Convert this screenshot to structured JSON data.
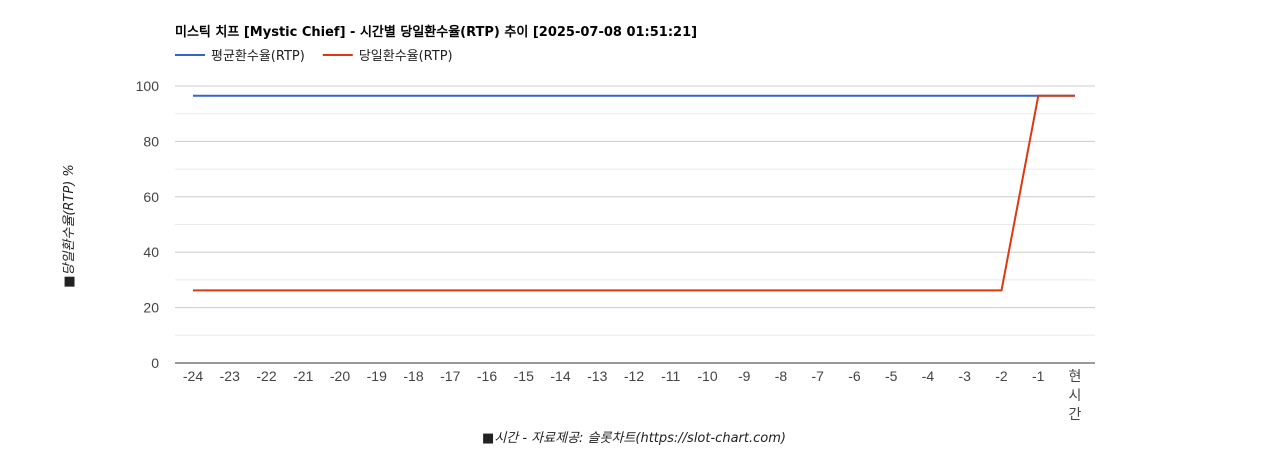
{
  "chart_data": {
    "type": "line",
    "title": "미스틱 치프 [Mystic Chief] - 시간별 당일환수율(RTP) 추이 [2025-07-08 01:51:21]",
    "xlabel": "■시간 - 자료제공: 슬롯차트(https://slot-chart.com)",
    "ylabel": "■당일환수율(RTP) %",
    "categories": [
      "-24",
      "-23",
      "-22",
      "-21",
      "-20",
      "-19",
      "-18",
      "-17",
      "-16",
      "-15",
      "-14",
      "-13",
      "-12",
      "-11",
      "-10",
      "-9",
      "-8",
      "-7",
      "-6",
      "-5",
      "-4",
      "-3",
      "-2",
      "-1",
      "현시간"
    ],
    "ylim": [
      0,
      100
    ],
    "yticks": [
      0,
      20,
      40,
      60,
      80,
      100
    ],
    "grid": true,
    "legend_position": "top-left",
    "series": [
      {
        "name": "평균환수율(RTP)",
        "color": "#3366cc",
        "values": [
          96.5,
          96.5,
          96.5,
          96.5,
          96.5,
          96.5,
          96.5,
          96.5,
          96.5,
          96.5,
          96.5,
          96.5,
          96.5,
          96.5,
          96.5,
          96.5,
          96.5,
          96.5,
          96.5,
          96.5,
          96.5,
          96.5,
          96.5,
          96.5,
          96.5
        ]
      },
      {
        "name": "당일환수율(RTP)",
        "color": "#dc3912",
        "values": [
          26.2,
          26.2,
          26.2,
          26.2,
          26.2,
          26.2,
          26.2,
          26.2,
          26.2,
          26.2,
          26.2,
          26.2,
          26.2,
          26.2,
          26.2,
          26.2,
          26.2,
          26.2,
          26.2,
          26.2,
          26.2,
          26.2,
          26.2,
          96.5,
          96.5
        ]
      }
    ]
  }
}
